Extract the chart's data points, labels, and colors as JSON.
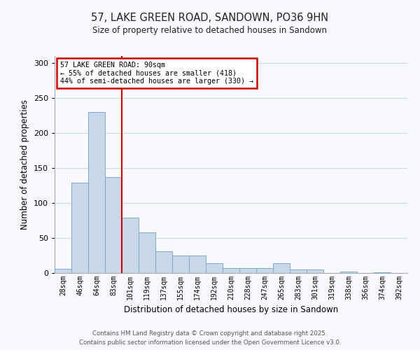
{
  "title": "57, LAKE GREEN ROAD, SANDOWN, PO36 9HN",
  "subtitle": "Size of property relative to detached houses in Sandown",
  "xlabel": "Distribution of detached houses by size in Sandown",
  "ylabel": "Number of detached properties",
  "bin_labels": [
    "28sqm",
    "46sqm",
    "64sqm",
    "83sqm",
    "101sqm",
    "119sqm",
    "137sqm",
    "155sqm",
    "174sqm",
    "192sqm",
    "210sqm",
    "228sqm",
    "247sqm",
    "265sqm",
    "283sqm",
    "301sqm",
    "319sqm",
    "338sqm",
    "356sqm",
    "374sqm",
    "392sqm"
  ],
  "bin_values": [
    6,
    129,
    230,
    137,
    79,
    58,
    31,
    25,
    25,
    14,
    7,
    7,
    7,
    14,
    5,
    5,
    0,
    2,
    0,
    1,
    0
  ],
  "bar_color": "#c8d8e8",
  "bar_edge_color": "#7aabcc",
  "vline_color": "#cc0000",
  "annotation_title": "57 LAKE GREEN ROAD: 90sqm",
  "annotation_line1": "← 55% of detached houses are smaller (418)",
  "annotation_line2": "44% of semi-detached houses are larger (330) →",
  "annotation_box_edge": "#cc0000",
  "ylim": [
    0,
    310
  ],
  "footer1": "Contains HM Land Registry data © Crown copyright and database right 2025.",
  "footer2": "Contains public sector information licensed under the Open Government Licence v3.0.",
  "bg_color": "#f7f9fc",
  "grid_color": "#c8dae8"
}
